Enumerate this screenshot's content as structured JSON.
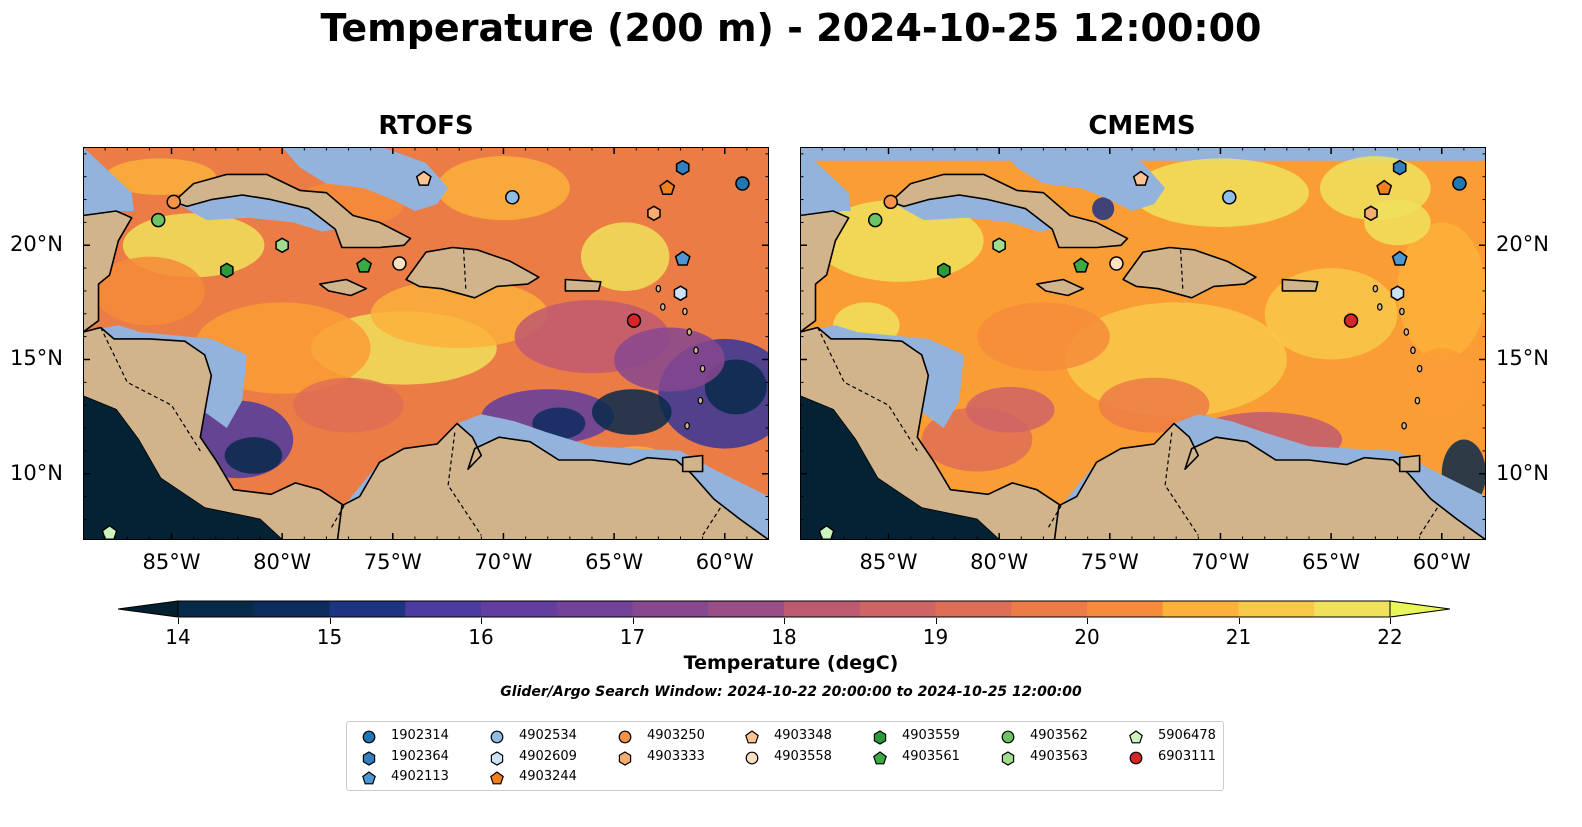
{
  "title": "Temperature (200 m) - 2024-10-25 12:00:00",
  "panels": [
    {
      "title": "RTOFS"
    },
    {
      "title": "CMEMS"
    }
  ],
  "lon_ticks": [
    "85°W",
    "80°W",
    "75°W",
    "70°W",
    "65°W",
    "60°W"
  ],
  "lat_ticks": [
    "20°N",
    "15°N",
    "10°N"
  ],
  "colorbar": {
    "label": "Temperature (degC)",
    "ticks": [
      "14",
      "15",
      "16",
      "17",
      "18",
      "19",
      "20",
      "21",
      "22"
    ],
    "min": 14,
    "max": 22,
    "step": 0.5,
    "colors": [
      "#082a4a",
      "#0d2c5e",
      "#1d3483",
      "#36379a",
      "#4d3ba1",
      "#613e9f",
      "#744299",
      "#874890",
      "#9a4d86",
      "#ac547c",
      "#bf5b70",
      "#cf6465",
      "#df6e56",
      "#ec7c45",
      "#f68c3a",
      "#fb9d35",
      "#fcb23a",
      "#f8c849",
      "#f0e05c"
    ],
    "under_color": "#041f30",
    "over_color": "#e8f65a"
  },
  "search_window": "Glider/Argo Search Window: 2024-10-22 20:00:00 to 2024-10-25 12:00:00",
  "map_colors": {
    "land": "#d2b48c",
    "shelf": "#93b3dd",
    "deep_pacific": "#052235"
  },
  "legend": [
    {
      "label": "1902314",
      "marker": "circle",
      "color": "#1f77b4"
    },
    {
      "label": "1902364",
      "marker": "hexagon",
      "color": "#2f7fc1"
    },
    {
      "label": "4902113",
      "marker": "pentagon",
      "color": "#4f95d1"
    },
    {
      "label": "4902534",
      "marker": "circle",
      "color": "#8fbde6"
    },
    {
      "label": "4902609",
      "marker": "hexagon",
      "color": "#cbe3f6"
    },
    {
      "label": "4903244",
      "marker": "pentagon",
      "color": "#f07f1c"
    },
    {
      "label": "4903250",
      "marker": "circle",
      "color": "#f5934a"
    },
    {
      "label": "4903333",
      "marker": "hexagon",
      "color": "#f7ad6d"
    },
    {
      "label": "4903348",
      "marker": "pentagon",
      "color": "#fac493"
    },
    {
      "label": "4903558",
      "marker": "circle",
      "color": "#fde0c1"
    },
    {
      "label": "4903559",
      "marker": "hexagon",
      "color": "#2a9a3a"
    },
    {
      "label": "4903561",
      "marker": "pentagon",
      "color": "#3aaa45"
    },
    {
      "label": "4903562",
      "marker": "circle",
      "color": "#6cc464"
    },
    {
      "label": "4903563",
      "marker": "hexagon",
      "color": "#9fdc8f"
    },
    {
      "label": "5906478",
      "marker": "pentagon",
      "color": "#cdf3c0"
    },
    {
      "label": "6903111",
      "marker": "circle",
      "color": "#d62728"
    }
  ],
  "floats": [
    {
      "id": "1902314",
      "marker": "circle",
      "color": "#1f77b4",
      "lon": -59.2,
      "lat": 22.7
    },
    {
      "id": "1902364",
      "marker": "hexagon",
      "color": "#2f7fc1",
      "lon": -61.9,
      "lat": 23.4
    },
    {
      "id": "4902113",
      "marker": "pentagon",
      "color": "#4f95d1",
      "lon": -61.9,
      "lat": 19.4
    },
    {
      "id": "4902534",
      "marker": "circle",
      "color": "#8fbde6",
      "lon": -69.6,
      "lat": 22.1
    },
    {
      "id": "4902609",
      "marker": "hexagon",
      "color": "#cbe3f6",
      "lon": -62.0,
      "lat": 17.9
    },
    {
      "id": "4903244",
      "marker": "pentagon",
      "color": "#f07f1c",
      "lon": -62.6,
      "lat": 22.5
    },
    {
      "id": "4903250",
      "marker": "circle",
      "color": "#f5934a",
      "lon": -84.9,
      "lat": 21.9
    },
    {
      "id": "4903333",
      "marker": "hexagon",
      "color": "#f7ad6d",
      "lon": -63.2,
      "lat": 21.4
    },
    {
      "id": "4903348",
      "marker": "pentagon",
      "color": "#fac493",
      "lon": -73.6,
      "lat": 22.9
    },
    {
      "id": "4903558",
      "marker": "circle",
      "color": "#fde0c1",
      "lon": -74.7,
      "lat": 19.2
    },
    {
      "id": "4903559",
      "marker": "hexagon",
      "color": "#2a9a3a",
      "lon": -82.5,
      "lat": 18.9
    },
    {
      "id": "4903561",
      "marker": "pentagon",
      "color": "#3aaa45",
      "lon": -76.3,
      "lat": 19.1
    },
    {
      "id": "4903562",
      "marker": "circle",
      "color": "#6cc464",
      "lon": -85.6,
      "lat": 21.1
    },
    {
      "id": "4903563",
      "marker": "hexagon",
      "color": "#9fdc8f",
      "lon": -80.0,
      "lat": 20.0
    },
    {
      "id": "5906478",
      "marker": "pentagon",
      "color": "#cdf3c0",
      "lon": -87.8,
      "lat": 7.4
    },
    {
      "id": "6903111",
      "marker": "circle",
      "color": "#d62728",
      "lon": -64.1,
      "lat": 16.7
    }
  ]
}
